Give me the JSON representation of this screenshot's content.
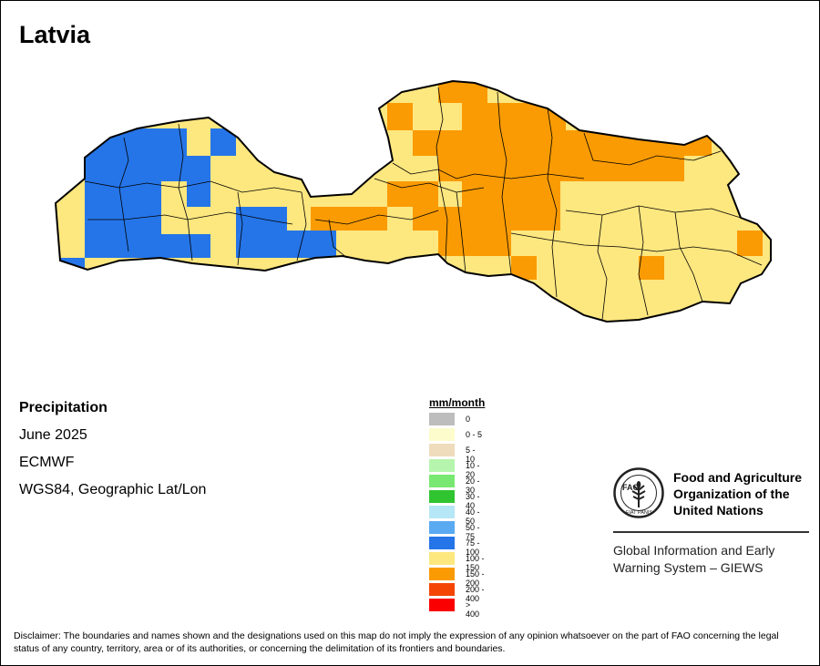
{
  "map_title": "Latvia",
  "info": {
    "variable": "Precipitation",
    "period": "June 2025",
    "source": "ECMWF",
    "projection": "WGS84, Geographic Lat/Lon"
  },
  "legend": {
    "unit": "mm/month",
    "classes": [
      {
        "label": "0",
        "color": "#bdbdbd"
      },
      {
        "label": "0 - 5",
        "color": "#fdfccc"
      },
      {
        "label": "5 - 10",
        "color": "#efdcbc"
      },
      {
        "label": "10 - 20",
        "color": "#b5f5ad"
      },
      {
        "label": "20 - 30",
        "color": "#79e872"
      },
      {
        "label": "30 - 40",
        "color": "#31c431"
      },
      {
        "label": "40 - 50",
        "color": "#b6e7f7"
      },
      {
        "label": "50 - 75",
        "color": "#5aaaf2"
      },
      {
        "label": "75 - 100",
        "color": "#2575e8"
      },
      {
        "label": "100 - 150",
        "color": "#fde77f"
      },
      {
        "label": "150 - 200",
        "color": "#fa9b03"
      },
      {
        "label": "200 - 400",
        "color": "#f44505"
      },
      {
        "label": "> 400",
        "color": "#fb0000"
      }
    ]
  },
  "organization": {
    "name_lines": [
      "Food and Agriculture",
      "Organization of the",
      "United Nations"
    ],
    "system_lines": [
      "Global Information and Early",
      "Warning System – GIEWS"
    ],
    "logo_text": "FAO",
    "logo_motto": "FIAT PANIS"
  },
  "disclaimer": "Disclaimer: The boundaries and names shown and the designations used on this map do not imply the expression of any opinion whatsoever on the part of FAO concerning the legal status of any country, territory, area or of its authorities, or concerning the delimitation of its frontiers and boundaries."
}
